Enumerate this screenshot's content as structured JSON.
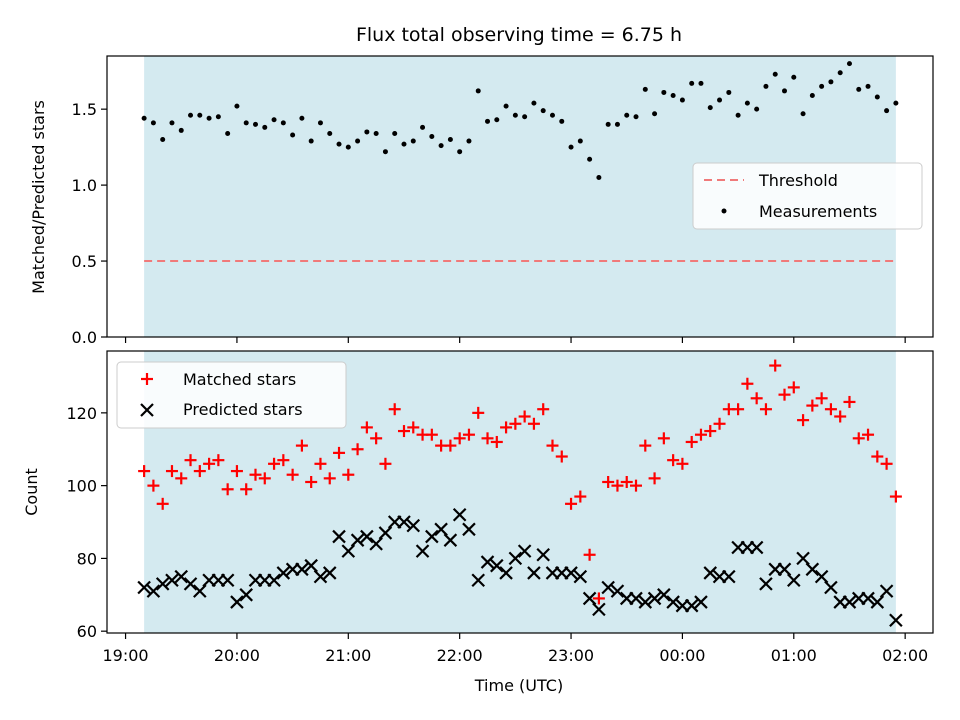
{
  "chart_data": [
    {
      "type": "scatter",
      "title": "Flux total observing time = 6.75 h",
      "xlabel": "",
      "ylabel": "Matched/Predicted stars",
      "ylim": [
        0,
        1.85
      ],
      "yticks": [
        "0.0",
        "0.5",
        "1.0",
        "1.5"
      ],
      "shaded_span": {
        "start": "19:10",
        "end": "01:55",
        "color": "#d4eaf0"
      },
      "threshold": {
        "name": "Threshold",
        "value": 0.5,
        "color": "#f07a7a",
        "style": "dashed"
      },
      "legend_position": "center-right",
      "series": [
        {
          "name": "Measurements",
          "color": "#000000",
          "marker": "dot",
          "x": [
            "19:10",
            "19:15",
            "19:20",
            "19:25",
            "19:30",
            "19:35",
            "19:40",
            "19:45",
            "19:50",
            "19:55",
            "20:00",
            "20:05",
            "20:10",
            "20:15",
            "20:20",
            "20:25",
            "20:30",
            "20:35",
            "20:40",
            "20:45",
            "20:50",
            "20:55",
            "21:00",
            "21:05",
            "21:10",
            "21:15",
            "21:20",
            "21:25",
            "21:30",
            "21:35",
            "21:40",
            "21:45",
            "21:50",
            "21:55",
            "22:00",
            "22:05",
            "22:10",
            "22:15",
            "22:20",
            "22:25",
            "22:30",
            "22:35",
            "22:40",
            "22:45",
            "22:50",
            "22:55",
            "23:00",
            "23:05",
            "23:10",
            "23:15",
            "23:20",
            "23:25",
            "23:30",
            "23:35",
            "23:40",
            "23:45",
            "23:50",
            "23:55",
            "00:00",
            "00:05",
            "00:10",
            "00:15",
            "00:20",
            "00:25",
            "00:30",
            "00:35",
            "00:40",
            "00:45",
            "00:50",
            "00:55",
            "01:00",
            "01:05",
            "01:10",
            "01:15",
            "01:20",
            "01:25",
            "01:30",
            "01:35",
            "01:40",
            "01:45",
            "01:50",
            "01:55"
          ],
          "y": [
            1.44,
            1.41,
            1.3,
            1.41,
            1.36,
            1.46,
            1.46,
            1.44,
            1.45,
            1.34,
            1.52,
            1.41,
            1.4,
            1.38,
            1.43,
            1.41,
            1.33,
            1.44,
            1.29,
            1.41,
            1.34,
            1.27,
            1.25,
            1.29,
            1.35,
            1.34,
            1.22,
            1.34,
            1.27,
            1.29,
            1.38,
            1.32,
            1.26,
            1.3,
            1.22,
            1.29,
            1.62,
            1.42,
            1.43,
            1.52,
            1.46,
            1.45,
            1.54,
            1.49,
            1.46,
            1.42,
            1.25,
            1.29,
            1.17,
            1.05,
            1.4,
            1.4,
            1.46,
            1.45,
            1.63,
            1.47,
            1.61,
            1.59,
            1.56,
            1.67,
            1.67,
            1.51,
            1.56,
            1.61,
            1.46,
            1.54,
            1.5,
            1.65,
            1.73,
            1.62,
            1.71,
            1.47,
            1.59,
            1.65,
            1.68,
            1.74,
            1.8,
            1.63,
            1.65,
            1.58,
            1.49,
            1.54
          ]
        }
      ]
    },
    {
      "type": "scatter",
      "title": "",
      "xlabel": "Time (UTC)",
      "ylabel": "Count",
      "ylim": [
        59.5,
        137
      ],
      "yticks": [
        "60",
        "80",
        "100",
        "120"
      ],
      "xticks": [
        "19:00",
        "20:00",
        "21:00",
        "22:00",
        "23:00",
        "00:00",
        "01:00",
        "02:00"
      ],
      "xlim": [
        "18:50",
        "02:15"
      ],
      "shaded_span": {
        "start": "19:10",
        "end": "01:55",
        "color": "#d4eaf0"
      },
      "legend_position": "top-left",
      "series": [
        {
          "name": "Matched stars",
          "color": "#ff0000",
          "marker": "plus",
          "x": [
            "19:10",
            "19:15",
            "19:20",
            "19:25",
            "19:30",
            "19:35",
            "19:40",
            "19:45",
            "19:50",
            "19:55",
            "20:00",
            "20:05",
            "20:10",
            "20:15",
            "20:20",
            "20:25",
            "20:30",
            "20:35",
            "20:40",
            "20:45",
            "20:50",
            "20:55",
            "21:00",
            "21:05",
            "21:10",
            "21:15",
            "21:20",
            "21:25",
            "21:30",
            "21:35",
            "21:40",
            "21:45",
            "21:50",
            "21:55",
            "22:00",
            "22:05",
            "22:10",
            "22:15",
            "22:20",
            "22:25",
            "22:30",
            "22:35",
            "22:40",
            "22:45",
            "22:50",
            "22:55",
            "23:00",
            "23:05",
            "23:10",
            "23:15",
            "23:20",
            "23:25",
            "23:30",
            "23:35",
            "23:40",
            "23:45",
            "23:50",
            "23:55",
            "00:00",
            "00:05",
            "00:10",
            "00:15",
            "00:20",
            "00:25",
            "00:30",
            "00:35",
            "00:40",
            "00:45",
            "00:50",
            "00:55",
            "01:00",
            "01:05",
            "01:10",
            "01:15",
            "01:20",
            "01:25",
            "01:30",
            "01:35",
            "01:40",
            "01:45",
            "01:50",
            "01:55"
          ],
          "y": [
            104,
            100,
            95,
            104,
            102,
            107,
            104,
            106,
            107,
            99,
            104,
            99,
            103,
            102,
            106,
            107,
            103,
            111,
            101,
            106,
            102,
            109,
            103,
            110,
            116,
            113,
            106,
            121,
            115,
            116,
            114,
            114,
            111,
            111,
            113,
            114,
            120,
            113,
            112,
            116,
            117,
            119,
            117,
            121,
            111,
            108,
            95,
            97,
            81,
            69,
            101,
            100,
            101,
            100,
            111,
            102,
            113,
            107,
            106,
            112,
            114,
            115,
            117,
            121,
            121,
            128,
            124,
            121,
            133,
            125,
            127,
            118,
            122,
            124,
            121,
            119,
            123,
            113,
            114,
            108,
            106,
            97
          ]
        },
        {
          "name": "Predicted stars",
          "color": "#000000",
          "marker": "x",
          "x": [
            "19:10",
            "19:15",
            "19:20",
            "19:25",
            "19:30",
            "19:35",
            "19:40",
            "19:45",
            "19:50",
            "19:55",
            "20:00",
            "20:05",
            "20:10",
            "20:15",
            "20:20",
            "20:25",
            "20:30",
            "20:35",
            "20:40",
            "20:45",
            "20:50",
            "20:55",
            "21:00",
            "21:05",
            "21:10",
            "21:15",
            "21:20",
            "21:25",
            "21:30",
            "21:35",
            "21:40",
            "21:45",
            "21:50",
            "21:55",
            "22:00",
            "22:05",
            "22:10",
            "22:15",
            "22:20",
            "22:25",
            "22:30",
            "22:35",
            "22:40",
            "22:45",
            "22:50",
            "22:55",
            "23:00",
            "23:05",
            "23:10",
            "23:15",
            "23:20",
            "23:25",
            "23:30",
            "23:35",
            "23:40",
            "23:45",
            "23:50",
            "23:55",
            "00:00",
            "00:05",
            "00:10",
            "00:15",
            "00:20",
            "00:25",
            "00:30",
            "00:35",
            "00:40",
            "00:45",
            "00:50",
            "00:55",
            "01:00",
            "01:05",
            "01:10",
            "01:15",
            "01:20",
            "01:25",
            "01:30",
            "01:35",
            "01:40",
            "01:45",
            "01:50",
            "01:55"
          ],
          "y": [
            72,
            71,
            73,
            74,
            75,
            73,
            71,
            74,
            74,
            74,
            68,
            70,
            74,
            74,
            74,
            76,
            77,
            77,
            78,
            75,
            76,
            86,
            82,
            85,
            86,
            84,
            87,
            90,
            90,
            89,
            82,
            86,
            88,
            85,
            92,
            88,
            74,
            79,
            78,
            76,
            80,
            82,
            76,
            81,
            76,
            76,
            76,
            75,
            69,
            66,
            72,
            71,
            69,
            69,
            68,
            69,
            70,
            68,
            67,
            67,
            68,
            76,
            75,
            75,
            83,
            83,
            83,
            73,
            77,
            77,
            74,
            80,
            77,
            75,
            72,
            68,
            68,
            69,
            69,
            68,
            71,
            63
          ]
        }
      ]
    }
  ]
}
